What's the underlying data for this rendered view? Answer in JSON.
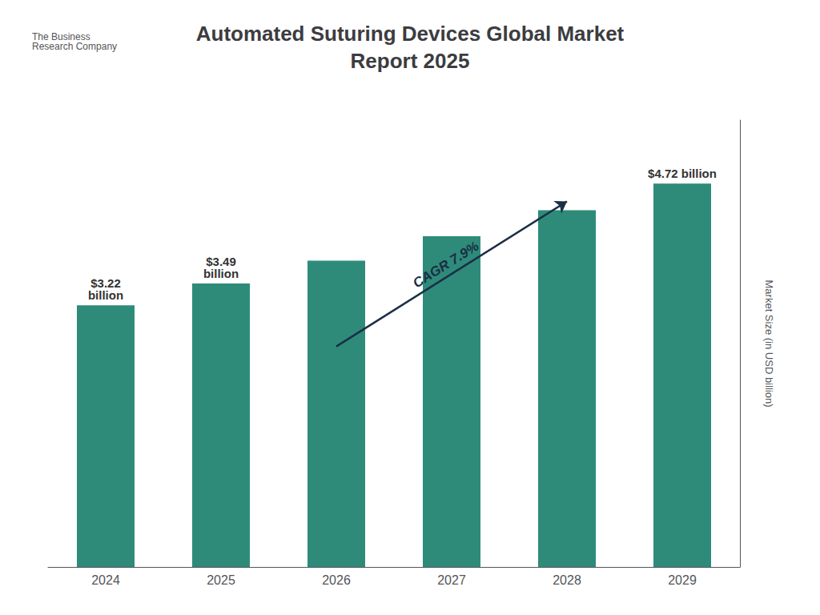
{
  "chart_data": {
    "type": "bar",
    "title": "Automated Suturing Devices Global Market\nReport 2025",
    "ylabel": "Market Size (in USD billion)",
    "categories": [
      "2024",
      "2025",
      "2026",
      "2027",
      "2028",
      "2029"
    ],
    "values": [
      3.22,
      3.49,
      3.77,
      4.07,
      4.39,
      4.72
    ],
    "value_labels": [
      "$3.22\nbillion",
      "$3.49\nbillion",
      null,
      null,
      null,
      "$4.72 billion"
    ],
    "color": "#2e8b7a",
    "ylim": [
      0,
      5.5
    ],
    "grid": false,
    "tick_labels": "x",
    "annotations": [
      {
        "text": "CAGR 7.9%",
        "from": "2026",
        "to": "2028"
      },
      {
        "text": "The Business\nResearch Company"
      }
    ]
  }
}
